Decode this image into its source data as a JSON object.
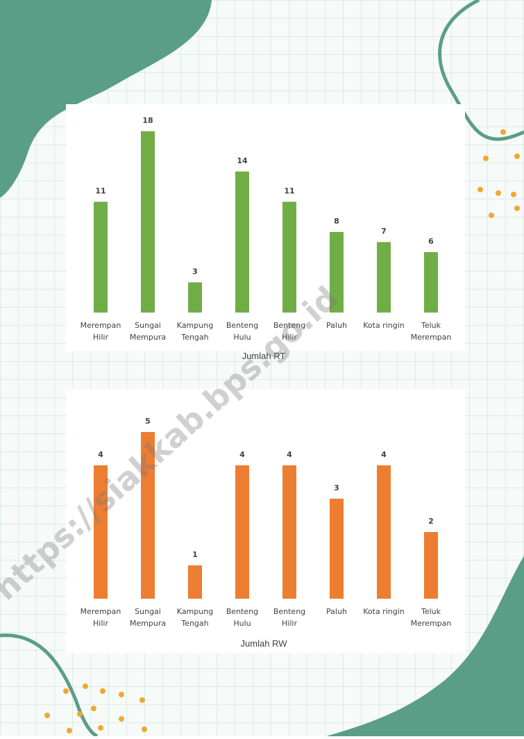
{
  "watermark": "https://siakkab.bps.go.id",
  "chart_data": [
    {
      "type": "bar",
      "title": "Jumlah RT",
      "color": "#70ad47",
      "categories": [
        [
          "Merempan",
          "Hilir"
        ],
        [
          "Sungai",
          "Mempura"
        ],
        [
          "Kampung",
          "Tengah"
        ],
        [
          "Benteng",
          "Hulu"
        ],
        [
          "Benteng",
          "Hilir"
        ],
        [
          "Paluh"
        ],
        [
          "Kota ringin"
        ],
        [
          "Teluk",
          "Merempan"
        ]
      ],
      "values": [
        11,
        18,
        3,
        14,
        11,
        8,
        7,
        6
      ]
    },
    {
      "type": "bar",
      "title": "Jumlah RW",
      "color": "#ed7d31",
      "categories": [
        [
          "Merempan",
          "Hilir"
        ],
        [
          "Sungai",
          "Mempura"
        ],
        [
          "Kampung",
          "Tengah"
        ],
        [
          "Benteng",
          "Hulu"
        ],
        [
          "Benteng",
          "Hilir"
        ],
        [
          "Paluh"
        ],
        [
          "Kota ringin"
        ],
        [
          "Teluk",
          "Merempan"
        ]
      ],
      "values": [
        4,
        5,
        1,
        4,
        4,
        3,
        4,
        2
      ]
    }
  ]
}
